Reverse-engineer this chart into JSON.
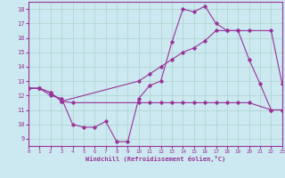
{
  "xlabel": "Windchill (Refroidissement éolien,°C)",
  "xlim": [
    0,
    23
  ],
  "ylim": [
    8.5,
    18.5
  ],
  "yticks": [
    9,
    10,
    11,
    12,
    13,
    14,
    15,
    16,
    17,
    18
  ],
  "xticks": [
    0,
    1,
    2,
    3,
    4,
    5,
    6,
    7,
    8,
    9,
    10,
    11,
    12,
    13,
    14,
    15,
    16,
    17,
    18,
    19,
    20,
    21,
    22,
    23
  ],
  "bg_color": "#cce8f0",
  "line_color": "#993399",
  "grid_color": "#aad4cc",
  "line1_x": [
    0,
    1,
    2,
    3,
    4,
    5,
    6,
    7,
    8,
    9,
    10,
    11,
    12,
    13,
    14,
    15,
    16,
    17,
    18,
    19,
    20,
    21,
    22,
    23
  ],
  "line1_y": [
    12.5,
    12.5,
    12.0,
    11.8,
    10.0,
    9.8,
    9.8,
    10.2,
    8.8,
    8.8,
    11.8,
    12.7,
    13.0,
    15.7,
    18.0,
    17.8,
    18.2,
    17.0,
    16.5,
    16.5,
    14.5,
    12.8,
    11.0,
    11.0
  ],
  "line2_x": [
    0,
    1,
    2,
    3,
    4,
    10,
    11,
    12,
    13,
    14,
    15,
    16,
    17,
    18,
    19,
    20,
    22,
    23
  ],
  "line2_y": [
    12.5,
    12.5,
    12.2,
    11.6,
    11.5,
    11.5,
    11.5,
    11.5,
    11.5,
    11.5,
    11.5,
    11.5,
    11.5,
    11.5,
    11.5,
    11.5,
    11.0,
    11.0
  ],
  "line3_x": [
    0,
    1,
    2,
    3,
    10,
    11,
    12,
    13,
    14,
    15,
    16,
    17,
    18,
    19,
    20,
    22,
    23
  ],
  "line3_y": [
    12.5,
    12.5,
    12.2,
    11.6,
    13.0,
    13.5,
    14.0,
    14.5,
    15.0,
    15.3,
    15.8,
    16.5,
    16.5,
    16.5,
    16.5,
    16.5,
    12.8
  ]
}
